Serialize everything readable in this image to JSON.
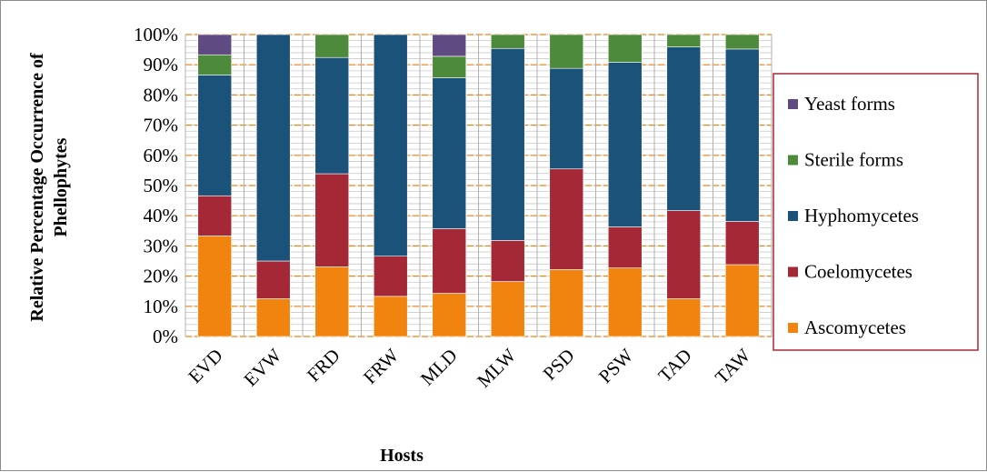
{
  "chart_data": {
    "type": "bar",
    "stacked": "percent",
    "categories": [
      "EVD",
      "EVW",
      "FRD",
      "FRW",
      "MLD",
      "MLW",
      "PSD",
      "PSW",
      "TAD",
      "TAW"
    ],
    "series": [
      {
        "name": "Ascomycetes",
        "color": "#f0840e",
        "values": [
          33.3,
          12.5,
          23.1,
          13.3,
          14.3,
          18.2,
          22.2,
          22.7,
          12.5,
          23.8
        ]
      },
      {
        "name": "Coelomycetes",
        "color": "#a52836",
        "values": [
          13.3,
          12.5,
          30.8,
          13.3,
          21.4,
          13.6,
          33.3,
          13.6,
          29.2,
          14.3
        ]
      },
      {
        "name": "Hyphomycetes",
        "color": "#1b5279",
        "values": [
          40.0,
          75.0,
          38.5,
          73.4,
          50.0,
          63.6,
          33.3,
          54.5,
          54.2,
          57.1
        ]
      },
      {
        "name": "Sterile forms",
        "color": "#4e8a3c",
        "values": [
          6.7,
          0,
          7.6,
          0,
          7.1,
          4.6,
          11.2,
          9.2,
          4.1,
          4.8
        ]
      },
      {
        "name": "Yeast forms",
        "color": "#5f4a82",
        "values": [
          6.7,
          0,
          0,
          0,
          7.2,
          0,
          0,
          0,
          0,
          0
        ]
      }
    ],
    "xlabel": "Hosts",
    "ylabel": "Relative Percentage Occurrence of Phellophytes",
    "ylabel_lines": [
      "Relative Percentage Occurrence of",
      "Phellophytes"
    ],
    "ylim": [
      0,
      100
    ],
    "yticks": [
      "0%",
      "10%",
      "20%",
      "30%",
      "40%",
      "50%",
      "60%",
      "70%",
      "80%",
      "90%",
      "100%"
    ],
    "legend": {
      "position": "right",
      "order": [
        "Yeast forms",
        "Sterile forms",
        "Hyphomycetes",
        "Coelomycetes",
        "Ascomycetes"
      ]
    },
    "grid": true,
    "major_gridline_color": "#f0840e"
  }
}
